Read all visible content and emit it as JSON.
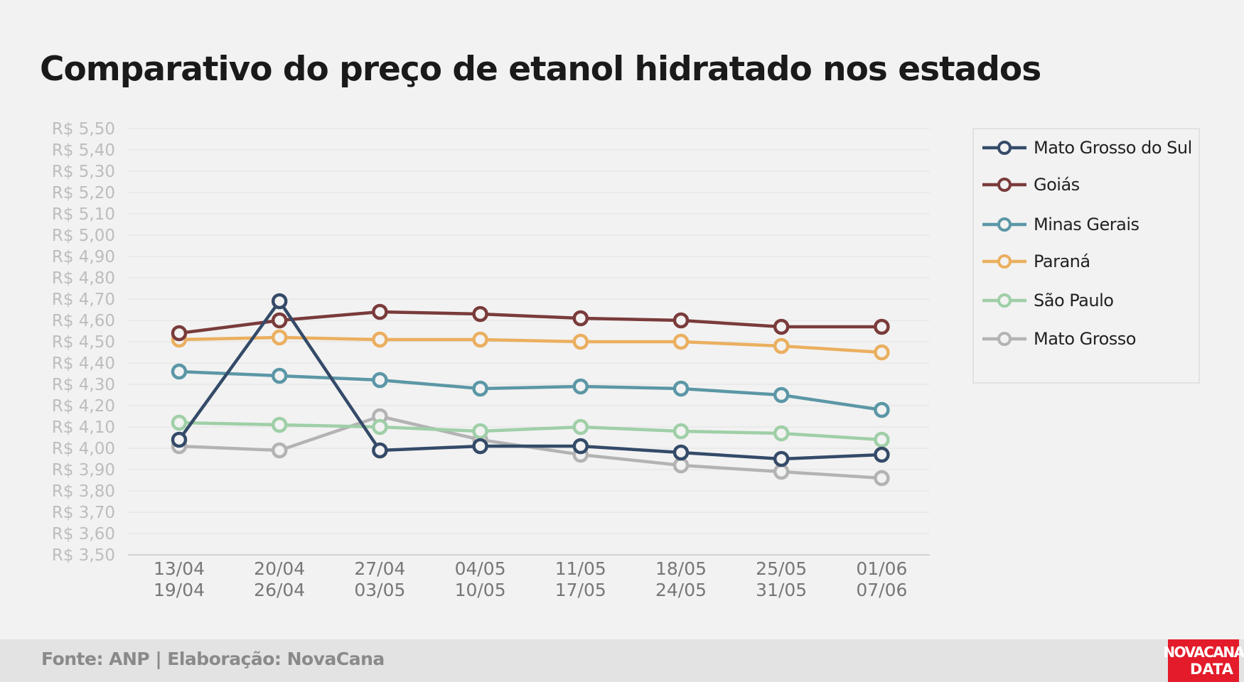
{
  "title": "Comparativo do preço de etanol hidratado nos estados",
  "footer": {
    "source": "Fonte: ANP | Elaboração: NovaCana"
  },
  "logo": {
    "line1": "NOVACANA",
    "line2": "DATA"
  },
  "chart_data": {
    "type": "line",
    "title": "Comparativo do preço de etanol hidratado nos estados",
    "ylim": [
      3.5,
      5.5
    ],
    "ytick_step": 0.1,
    "y_tick_labels": [
      "R$ 5,50",
      "R$ 5,40",
      "R$ 5,30",
      "R$ 5,20",
      "R$ 5,10",
      "R$ 5,00",
      "R$ 4,90",
      "R$ 4,80",
      "R$ 4,70",
      "R$ 4,60",
      "R$ 4,50",
      "R$ 4,40",
      "R$ 4,30",
      "R$ 4,20",
      "R$ 4,10",
      "R$ 4,00",
      "R$ 3,90",
      "R$ 3,80",
      "R$ 3,70",
      "R$ 3,60",
      "R$ 3,50"
    ],
    "categories": [
      [
        "13/04",
        "19/04"
      ],
      [
        "20/04",
        "26/04"
      ],
      [
        "27/04",
        "03/05"
      ],
      [
        "04/05",
        "10/05"
      ],
      [
        "11/05",
        "17/05"
      ],
      [
        "18/05",
        "24/05"
      ],
      [
        "25/05",
        "31/05"
      ],
      [
        "01/06",
        "07/06"
      ]
    ],
    "grid": true,
    "legend_position": "right",
    "series": [
      {
        "name": "Mato Grosso do Sul",
        "color": "#344a68",
        "values": [
          4.04,
          4.69,
          3.99,
          4.01,
          4.01,
          3.98,
          3.95,
          3.97
        ]
      },
      {
        "name": "Goiás",
        "color": "#7a3b3b",
        "values": [
          4.54,
          4.6,
          4.64,
          4.63,
          4.61,
          4.6,
          4.57,
          4.57
        ]
      },
      {
        "name": "Minas Gerais",
        "color": "#5b97a6",
        "values": [
          4.36,
          4.34,
          4.32,
          4.28,
          4.29,
          4.28,
          4.25,
          4.18
        ]
      },
      {
        "name": "Paraná",
        "color": "#eaaf5f",
        "values": [
          4.51,
          4.52,
          4.51,
          4.51,
          4.5,
          4.5,
          4.48,
          4.45
        ]
      },
      {
        "name": "São Paulo",
        "color": "#9fcfa7",
        "values": [
          4.12,
          4.11,
          4.1,
          4.08,
          4.1,
          4.08,
          4.07,
          4.04
        ]
      },
      {
        "name": "Mato Grosso",
        "color": "#b3b3b3",
        "values": [
          4.01,
          3.99,
          4.15,
          4.04,
          3.97,
          3.92,
          3.89,
          3.86
        ]
      }
    ]
  }
}
